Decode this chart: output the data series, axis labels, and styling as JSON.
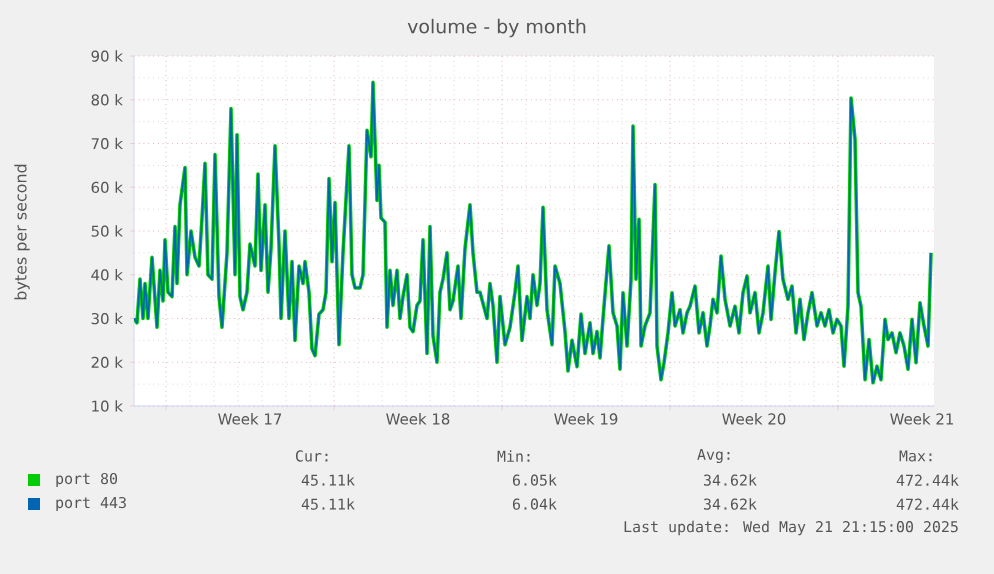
{
  "chart_data": {
    "type": "line",
    "title": "volume - by month",
    "ylabel": "bytes per second",
    "x": [
      "2025-04-19T16:00",
      "2025-04-19T19:00",
      "2025-04-19T22:00",
      "2025-04-20T01:00",
      "2025-04-20T03:00",
      "2025-04-20T06:00",
      "2025-04-20T10:00",
      "2025-04-20T15:00",
      "2025-04-20T18:00",
      "2025-04-20T21:00",
      "2025-04-20T23:00",
      "2025-04-21T02:00",
      "2025-04-21T06:00",
      "2025-04-21T09:00",
      "2025-04-21T11:00",
      "2025-04-21T14:00",
      "2025-04-21T19:00",
      "2025-04-21T21:00",
      "2025-04-22T01:00",
      "2025-04-22T05:00",
      "2025-04-22T09:00",
      "2025-04-22T12:00",
      "2025-04-22T15:00",
      "2025-04-22T18:00",
      "2025-04-22T22:00",
      "2025-04-23T01:00",
      "2025-04-23T05:00",
      "2025-04-23T08:00",
      "2025-04-23T13:00",
      "2025-04-23T17:00",
      "2025-04-23T21:00",
      "2025-04-23T23:00",
      "2025-04-24T02:00",
      "2025-04-24T05:00",
      "2025-04-24T09:00",
      "2025-04-24T12:00",
      "2025-04-24T17:00",
      "2025-04-24T20:00",
      "2025-04-24T23:00",
      "2025-04-25T03:00",
      "2025-04-25T06:00",
      "2025-04-25T09:00",
      "2025-04-25T13:00",
      "2025-04-25T17:00",
      "2025-04-25T19:00",
      "2025-04-25T23:00",
      "2025-04-26T03:00",
      "2025-04-26T06:00",
      "2025-04-26T09:00",
      "2025-04-26T13:00",
      "2025-04-26T17:00",
      "2025-04-26T19:00",
      "2025-04-26T23:00",
      "2025-04-27T02:00",
      "2025-04-27T05:00",
      "2025-04-27T09:00",
      "2025-04-27T13:00",
      "2025-04-27T16:00",
      "2025-04-27T19:00",
      "2025-04-27T22:00",
      "2025-04-28T01:00",
      "2025-04-28T05:00",
      "2025-04-28T09:00",
      "2025-04-28T15:00",
      "2025-04-28T18:00",
      "2025-04-28T21:00",
      "2025-04-29T02:00",
      "2025-04-29T05:00",
      "2025-04-29T09:00",
      "2025-04-29T13:00",
      "2025-04-29T15:00",
      "2025-04-29T19:00",
      "2025-04-29T21:00",
      "2025-04-29T23:00",
      "2025-04-30T03:00",
      "2025-04-30T05:00",
      "2025-04-30T08:00",
      "2025-04-30T11:00",
      "2025-04-30T15:00",
      "2025-04-30T18:00",
      "2025-04-30T21:00",
      "2025-05-01T01:00",
      "2025-05-01T04:00",
      "2025-05-01T07:00",
      "2025-05-01T11:00",
      "2025-05-01T14:00",
      "2025-05-01T17:00",
      "2025-05-01T21:00",
      "2025-05-02T00:00",
      "2025-05-02T03:00",
      "2025-05-02T07:00",
      "2025-05-02T10:00",
      "2025-05-02T13:00",
      "2025-05-02T17:00",
      "2025-05-02T20:00",
      "2025-05-02T23:00",
      "2025-05-03T04:00",
      "2025-05-03T07:00",
      "2025-05-03T11:00",
      "2025-05-03T16:00",
      "2025-05-03T19:00",
      "2025-05-03T23:00",
      "2025-05-04T02:00",
      "2025-05-04T09:00",
      "2025-05-04T12:00",
      "2025-05-04T15:00",
      "2025-05-04T19:00",
      "2025-05-04T22:00",
      "2025-05-05T03:00",
      "2025-05-05T08:00",
      "2025-05-05T13:00",
      "2025-05-05T16:00",
      "2025-05-05T20:00",
      "2025-05-06T01:00",
      "2025-05-06T04:00",
      "2025-05-06T07:00",
      "2025-05-06T11:00",
      "2025-05-06T14:00",
      "2025-05-06T17:00",
      "2025-05-06T21:00",
      "2025-05-07T02:00",
      "2025-05-07T05:00",
      "2025-05-07T10:00",
      "2025-05-07T15:00",
      "2025-05-07T18:00",
      "2025-05-07T22:00",
      "2025-05-08T03:00",
      "2025-05-08T07:00",
      "2025-05-08T11:00",
      "2025-05-08T16:00",
      "2025-05-08T19:00",
      "2025-05-08T23:00",
      "2025-05-09T02:00",
      "2025-05-09T05:00",
      "2025-05-09T11:00",
      "2025-05-09T15:00",
      "2025-05-09T19:00",
      "2025-05-09T22:00",
      "2025-05-10T01:00",
      "2025-05-10T05:00",
      "2025-05-10T09:00",
      "2025-05-10T11:00",
      "2025-05-10T14:00",
      "2025-05-10T17:00",
      "2025-05-10T19:00",
      "2025-05-10T23:00",
      "2025-05-11T04:00",
      "2025-05-11T09:00",
      "2025-05-11T11:00",
      "2025-05-11T15:00",
      "2025-05-11T18:00",
      "2025-05-11T22:00",
      "2025-05-12T02:00",
      "2025-05-12T05:00",
      "2025-05-12T10:00",
      "2025-05-12T13:00",
      "2025-05-12T17:00",
      "2025-05-12T20:00",
      "2025-05-13T01:00",
      "2025-05-13T05:00",
      "2025-05-13T09:00",
      "2025-05-13T13:00",
      "2025-05-13T16:00",
      "2025-05-13T19:00",
      "2025-05-13T23:00",
      "2025-05-14T03:00",
      "2025-05-14T07:00",
      "2025-05-14T12:00",
      "2025-05-14T17:00",
      "2025-05-14T21:00",
      "2025-05-15T01:00",
      "2025-05-15T05:00",
      "2025-05-15T08:00",
      "2025-05-15T13:00",
      "2025-05-15T17:00",
      "2025-05-15T21:00",
      "2025-05-16T02:00",
      "2025-05-16T05:00",
      "2025-05-16T09:00",
      "2025-05-16T13:00",
      "2025-05-16T17:00",
      "2025-05-16T22:00",
      "2025-05-17T02:00",
      "2025-05-17T06:00",
      "2025-05-17T10:00",
      "2025-05-17T14:00",
      "2025-05-17T18:00",
      "2025-05-17T22:00",
      "2025-05-18T03:00",
      "2025-05-18T07:00",
      "2025-05-18T11:00",
      "2025-05-18T15:00",
      "2025-05-18T19:00",
      "2025-05-18T23:00",
      "2025-05-19T03:00",
      "2025-05-19T06:00",
      "2025-05-19T10:00",
      "2025-05-19T13:00",
      "2025-05-19T17:00",
      "2025-05-19T20:00",
      "2025-05-19T23:00",
      "2025-05-20T03:00",
      "2025-05-20T07:00",
      "2025-05-20T11:00",
      "2025-05-20T15:00",
      "2025-05-20T19:00",
      "2025-05-20T23:00",
      "2025-05-21T02:00",
      "2025-05-21T06:00",
      "2025-05-21T10:00",
      "2025-05-21T14:00",
      "2025-05-21T18:00",
      "2025-05-21T22:00",
      "2025-05-22T02:00",
      "2025-05-22T06:00",
      "2025-05-22T10:00",
      "2025-05-22T14:00",
      "2025-05-22T18:00",
      "2025-05-22T21:00"
    ],
    "series": [
      {
        "name": "port 80",
        "color": "#00cc00",
        "values": [
          30,
          29,
          39,
          30,
          38,
          30,
          44,
          28,
          41,
          34,
          48,
          36,
          35,
          51,
          38,
          56,
          64.5,
          40,
          50,
          44,
          42,
          53,
          65.5,
          40,
          39,
          67.5,
          35,
          28,
          45,
          78,
          40,
          72,
          35,
          32,
          36,
          47,
          42,
          63,
          41,
          56,
          36,
          46,
          69.5,
          47,
          30,
          50,
          30,
          43,
          25,
          42,
          38,
          43,
          36,
          23,
          21.5,
          31,
          32,
          36,
          62,
          43,
          56.5,
          24,
          45,
          69.5,
          40,
          37,
          37,
          40,
          73,
          67,
          84,
          57,
          65,
          53,
          52,
          28,
          41,
          33,
          41,
          30,
          35,
          40,
          28,
          27,
          33,
          34,
          48,
          22,
          51,
          26,
          20,
          36,
          39,
          45,
          32,
          34,
          42,
          30,
          46,
          56,
          45,
          36,
          36,
          30,
          38,
          33,
          20,
          35,
          24,
          28,
          36,
          42,
          25,
          35,
          30,
          40,
          33,
          38,
          55.4,
          32,
          24,
          42,
          38,
          27,
          18,
          25,
          19,
          31,
          22,
          29,
          22,
          27,
          21,
          30,
          46.6,
          31.3,
          28.3,
          18.4,
          35.9,
          23.7,
          38.9,
          74,
          39,
          52.7,
          23.7,
          28.3,
          31.3,
          60.6,
          23.7,
          16,
          19.9,
          26.7,
          35.9,
          28.3,
          32,
          26.7,
          31.3,
          32.8,
          37.4,
          26.7,
          31.3,
          23.7,
          28.3,
          34.4,
          31.3,
          44.3,
          34.4,
          28.3,
          32.8,
          26.7,
          35.9,
          39.7,
          31.3,
          35.9,
          26.7,
          31.3,
          42,
          29.8,
          40.5,
          49.9,
          38.9,
          34.4,
          37.4,
          26.7,
          34.4,
          25.2,
          31.3,
          35.9,
          28.3,
          31.3,
          28.3,
          32,
          26.7,
          29.8,
          28.3,
          19.1,
          32.8,
          80.4,
          71,
          35.9,
          32.8,
          16,
          25.2,
          15.3,
          19.1,
          16,
          29.8,
          25.2,
          26.7,
          22.2,
          26.7,
          23.7,
          18.4,
          29.8,
          19.9,
          33.6,
          28.3,
          23.7,
          45
        ]
      },
      {
        "name": "port 443",
        "color": "#0066b3",
        "values": [
          30,
          29,
          39,
          30,
          38,
          30,
          44,
          28,
          41,
          34,
          48,
          36,
          35,
          51,
          38,
          56,
          64.5,
          40,
          50,
          44,
          42,
          53,
          65.5,
          40,
          39,
          67.5,
          35,
          28,
          45,
          78,
          40,
          72,
          35,
          32,
          36,
          47,
          42,
          63,
          41,
          56,
          36,
          46,
          69.5,
          47,
          30,
          50,
          30,
          43,
          25,
          42,
          38,
          43,
          36,
          23,
          21.5,
          31,
          32,
          36,
          62,
          43,
          56.5,
          24,
          45,
          69.5,
          40,
          37,
          37,
          40,
          73,
          67,
          84,
          57,
          65,
          53,
          52,
          28,
          41,
          33,
          41,
          30,
          35,
          40,
          28,
          27,
          33,
          34,
          48,
          22,
          51,
          26,
          20,
          36,
          39,
          45,
          32,
          34,
          42,
          30,
          46,
          56,
          45,
          36,
          36,
          30,
          38,
          33,
          20,
          35,
          24,
          28,
          36,
          42,
          25,
          35,
          30,
          40,
          33,
          38,
          55.4,
          32,
          24,
          42,
          38,
          27,
          18,
          25,
          19,
          31,
          22,
          29,
          22,
          27,
          21,
          30,
          46.6,
          31.3,
          28.3,
          18.4,
          35.9,
          23.7,
          38.9,
          74,
          39,
          52.7,
          23.7,
          28.3,
          31.3,
          60.6,
          23.7,
          16,
          19.9,
          26.7,
          35.9,
          28.3,
          32,
          26.7,
          31.3,
          32.8,
          37.4,
          26.7,
          31.3,
          23.7,
          28.3,
          34.4,
          31.3,
          44.3,
          34.4,
          28.3,
          32.8,
          26.7,
          35.9,
          39.7,
          31.3,
          35.9,
          26.7,
          31.3,
          42,
          29.8,
          40.5,
          49.9,
          38.9,
          34.4,
          37.4,
          26.7,
          34.4,
          25.2,
          31.3,
          35.9,
          28.3,
          31.3,
          28.3,
          32,
          26.7,
          29.8,
          28.3,
          19.1,
          32.8,
          80.4,
          71,
          35.9,
          32.8,
          16,
          25.2,
          15.3,
          19.1,
          16,
          29.8,
          25.2,
          26.7,
          22.2,
          26.7,
          23.7,
          18.4,
          29.8,
          19.9,
          33.6,
          28.3,
          23.7,
          45
        ]
      }
    ],
    "xlim": [
      "2025-04-19T16:00",
      "2025-05-23T00:00"
    ],
    "xticks": [
      {
        "value": "2025-04-21",
        "label": null
      },
      {
        "value": "2025-04-28",
        "label": null
      },
      {
        "value": "2025-05-05",
        "label": null
      },
      {
        "value": "2025-05-12",
        "label": null
      },
      {
        "value": "2025-05-19",
        "label": null
      },
      {
        "value": "2025-04-24T12:00",
        "label": "Week 17"
      },
      {
        "value": "2025-05-01T12:00",
        "label": "Week 18"
      },
      {
        "value": "2025-05-08T12:00",
        "label": "Week 19"
      },
      {
        "value": "2025-05-15T12:00",
        "label": "Week 20"
      },
      {
        "value": "2025-05-22T12:00",
        "label": "Week 21"
      }
    ],
    "ylim": [
      10,
      90
    ],
    "yticks": [
      {
        "value": 10,
        "label": "10 k"
      },
      {
        "value": 20,
        "label": "20 k"
      },
      {
        "value": 30,
        "label": "30 k"
      },
      {
        "value": 40,
        "label": "40 k"
      },
      {
        "value": 50,
        "label": "50 k"
      },
      {
        "value": 60,
        "label": "60 k"
      },
      {
        "value": 70,
        "label": "70 k"
      },
      {
        "value": 80,
        "label": "80 k"
      },
      {
        "value": 90,
        "label": "90 k"
      }
    ],
    "grid": true,
    "legend": "bottom",
    "marker": "none",
    "line_style": "solid",
    "annotations": [
      "Cur:",
      "Min:",
      "Avg:",
      "Max:",
      "45.11k",
      "6.05k",
      "34.62k",
      "472.44k",
      "45.11k",
      "6.04k",
      "34.62k",
      "472.44k",
      "Last update: Wed May 21 21:15:00 2025"
    ]
  }
}
